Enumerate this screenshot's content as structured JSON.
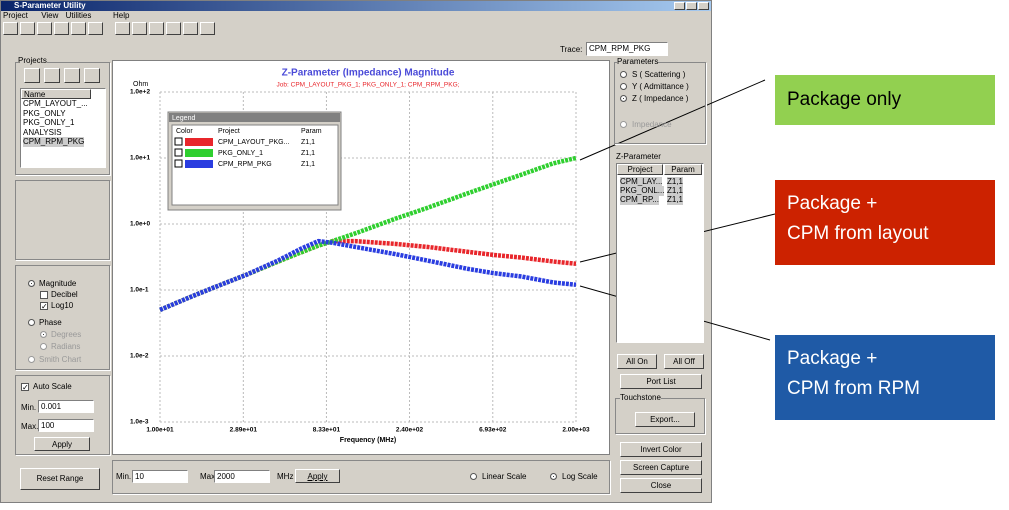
{
  "window": {
    "title": "S-Parameter Utility",
    "menu": [
      "Project",
      "View",
      "Utilities",
      "Help"
    ],
    "trace_label": "Trace:",
    "trace_value": "CPM_RPM_PKG",
    "projects": {
      "title": "Projects",
      "header": "Name",
      "items": [
        "CPM_LAYOUT_...",
        "PKG_ONLY",
        "PKG_ONLY_1",
        "ANALYSIS",
        "CPM_RPM_PKG"
      ]
    },
    "display": {
      "options": [
        "Magnitude",
        "Decibel",
        "Log10",
        "Phase",
        "Degrees",
        "Radians",
        "Smith Chart"
      ]
    },
    "scale": {
      "auto": "Auto Scale",
      "min_label": "Min.",
      "min": "0.001",
      "max_label": "Max.",
      "max": "100",
      "apply": "Apply"
    },
    "bottom": {
      "reset": "Reset Range",
      "min_label": "Min.",
      "min": "10",
      "max_label": "Max.",
      "max": "2000",
      "unit": "MHz",
      "apply": "Apply",
      "linear": "Linear Scale",
      "log": "Log Scale"
    },
    "parameters": {
      "title": "Parameters",
      "options": [
        "S ( Scattering )",
        "Y ( Admittance )",
        "Z ( Impedance )",
        "Impedance"
      ]
    },
    "zparam": {
      "title": "Z-Parameter",
      "headers": [
        "Project",
        "Param"
      ],
      "rows": [
        [
          "CPM_LAY...",
          "Z1,1"
        ],
        [
          "PKG_ONL...",
          "Z1,1"
        ],
        [
          "CPM_RP...",
          "Z1,1"
        ]
      ]
    },
    "buttons": [
      "All On",
      "All Off",
      "Port List",
      "Invert Color",
      "Screen Capture",
      "Close"
    ],
    "touchstone": {
      "title": "Touchstone",
      "button": "Export..."
    }
  },
  "chart_data": {
    "type": "line",
    "title": "Z-Parameter (Impedance) Magnitude",
    "subtitle": "Job: CPM_LAYOUT_PKG_1; PKG_ONLY_1; CPM_RPM_PKG;",
    "y_label": "Ohm",
    "x_label": "Frequency (MHz)",
    "log_x": true,
    "log_y": true,
    "grid": true,
    "x": [
      10,
      15,
      20,
      30,
      45,
      60,
      75,
      90,
      120,
      200,
      300,
      500,
      700,
      1000,
      1500,
      2000
    ],
    "series": [
      {
        "name": "CPM_LAYOUT_PKG...",
        "color": "#e8262b",
        "values": [
          0.05,
          0.08,
          0.11,
          0.17,
          0.27,
          0.37,
          0.47,
          0.55,
          0.55,
          0.5,
          0.45,
          0.38,
          0.34,
          0.31,
          0.27,
          0.25
        ]
      },
      {
        "name": "PKG_ONLY_1",
        "color": "#2fcf2f",
        "values": [
          0.05,
          0.08,
          0.11,
          0.17,
          0.27,
          0.37,
          0.47,
          0.55,
          0.72,
          1.2,
          1.75,
          2.9,
          4.0,
          5.6,
          8.3,
          10
        ]
      },
      {
        "name": "CPM_RPM_PKG",
        "color": "#2a3de0",
        "values": [
          0.05,
          0.08,
          0.11,
          0.17,
          0.28,
          0.42,
          0.55,
          0.52,
          0.45,
          0.35,
          0.28,
          0.21,
          0.18,
          0.16,
          0.13,
          0.12
        ]
      }
    ],
    "xlim": [
      10,
      2000
    ],
    "ylim": [
      0.001,
      100
    ],
    "xticks": [
      {
        "value": 10,
        "label": "1.00e+01"
      },
      {
        "value": 28.9,
        "label": "2.89e+01"
      },
      {
        "value": 83.3,
        "label": "8.33e+01"
      },
      {
        "value": 240,
        "label": "2.40e+02"
      },
      {
        "value": 693,
        "label": "6.93e+02"
      },
      {
        "value": 2000,
        "label": "2.00e+03"
      }
    ],
    "yticks": [
      {
        "value": 0.001,
        "label": "1.0e-3"
      },
      {
        "value": 0.01,
        "label": "1.0e-2"
      },
      {
        "value": 0.1,
        "label": "1.0e-1"
      },
      {
        "value": 1,
        "label": "1.0e+0"
      },
      {
        "value": 10,
        "label": "1.0e+1"
      },
      {
        "value": 100,
        "label": "1.0e+2"
      }
    ],
    "legend": {
      "title": "Legend",
      "headers": [
        "Color",
        "Project",
        "Param"
      ],
      "params": [
        "Z1,1",
        "Z1,1",
        "Z1,1"
      ]
    }
  },
  "callouts": [
    {
      "lines": [
        "Package only"
      ],
      "color": "#92d050",
      "text_color": "#000000"
    },
    {
      "lines": [
        "Package +",
        "CPM from layout"
      ],
      "color": "#cc2200",
      "text_color": "#ffffff"
    },
    {
      "lines": [
        "Package +",
        "CPM from RPM"
      ],
      "color": "#1f5aa6",
      "text_color": "#ffffff"
    }
  ]
}
